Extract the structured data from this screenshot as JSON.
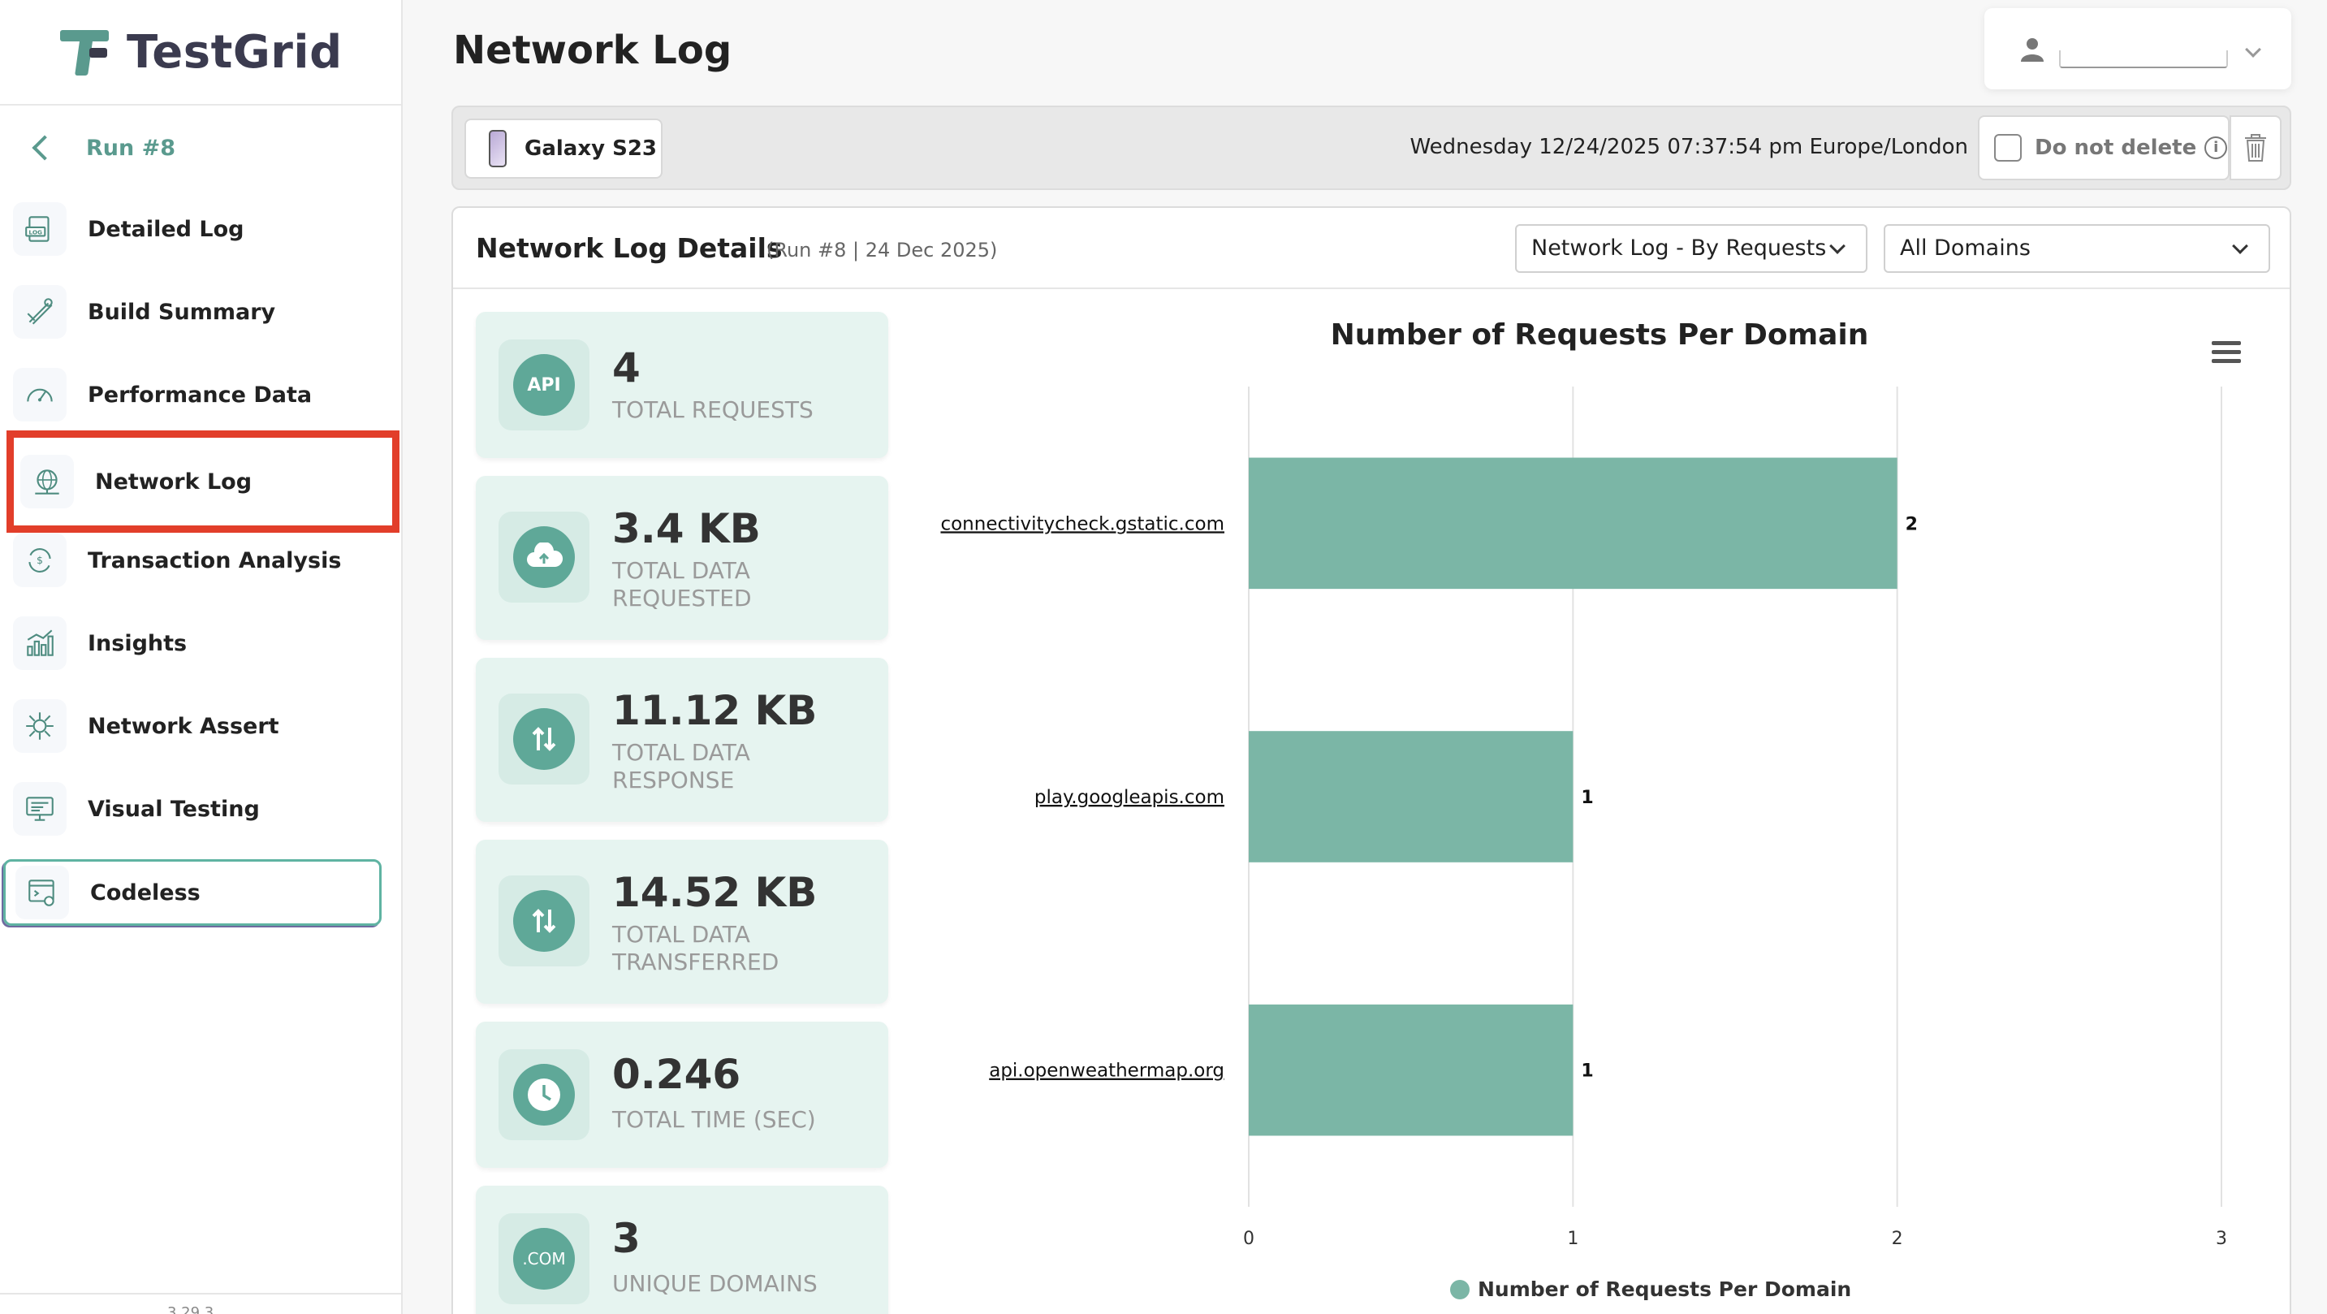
{
  "brand": {
    "name": "TestGrid"
  },
  "sidebar": {
    "run_label": "Run #8",
    "items": [
      {
        "label": "Detailed Log",
        "icon": "log-icon"
      },
      {
        "label": "Build Summary",
        "icon": "build-summary-icon"
      },
      {
        "label": "Performance Data",
        "icon": "performance-gauge-icon"
      },
      {
        "label": "Network Log",
        "icon": "network-globe-icon"
      },
      {
        "label": "Transaction Analysis",
        "icon": "transaction-cycle-icon"
      },
      {
        "label": "Insights",
        "icon": "insights-chart-icon"
      },
      {
        "label": "Network Assert",
        "icon": "network-assert-icon"
      },
      {
        "label": "Visual Testing",
        "icon": "visual-testing-icon"
      },
      {
        "label": "Codeless",
        "icon": "codeless-icon"
      }
    ],
    "version": "3.29.3"
  },
  "page": {
    "title": "Network Log"
  },
  "device": {
    "name": "Galaxy S23",
    "datetime": "Wednesday 12/24/2025 07:37:54 pm Europe/London",
    "do_not_delete_label": "Do not delete",
    "info_glyph": "i"
  },
  "details": {
    "title": "Network Log Details",
    "subtitle": "(Run #8 | 24 Dec 2025)",
    "view_select": "Network Log - By Requests",
    "domain_select": "All Domains"
  },
  "stats": [
    {
      "value": "4",
      "caption": "TOTAL REQUESTS",
      "icon_text": "API",
      "icon": "api-icon"
    },
    {
      "value": "3.4 KB",
      "caption": "TOTAL DATA REQUESTED",
      "icon_text": "",
      "icon": "cloud-upload-icon"
    },
    {
      "value": "11.12 KB",
      "caption": "TOTAL DATA RESPONSE",
      "icon_text": "",
      "icon": "transfer-arrows-icon"
    },
    {
      "value": "14.52 KB",
      "caption": "TOTAL DATA TRANSFERRED",
      "icon_text": "",
      "icon": "transfer-arrows-icon"
    },
    {
      "value": "0.246",
      "caption": "TOTAL TIME (SEC)",
      "icon_text": "",
      "icon": "clock-icon"
    },
    {
      "value": "3",
      "caption": "UNIQUE DOMAINS",
      "icon_text": ".COM",
      "icon": "domain-icon"
    }
  ],
  "colors": {
    "accent": "#5a9a8e",
    "bar": "#7bb6a6",
    "highlight": "#e23e2a"
  },
  "chart_data": {
    "type": "bar",
    "orientation": "horizontal",
    "title": "Number of Requests Per Domain",
    "categories": [
      "connectivitycheck.gstatic.com",
      "play.googleapis.com",
      "api.openweathermap.org"
    ],
    "series": [
      {
        "name": "Number of Requests Per Domain",
        "values": [
          2,
          1,
          1
        ]
      }
    ],
    "xlim": [
      0,
      3
    ],
    "ticks": [
      "0",
      "1",
      "2",
      "3"
    ],
    "data_labels": [
      "2",
      "1",
      "1"
    ],
    "grid": true,
    "legend": "bottom"
  }
}
